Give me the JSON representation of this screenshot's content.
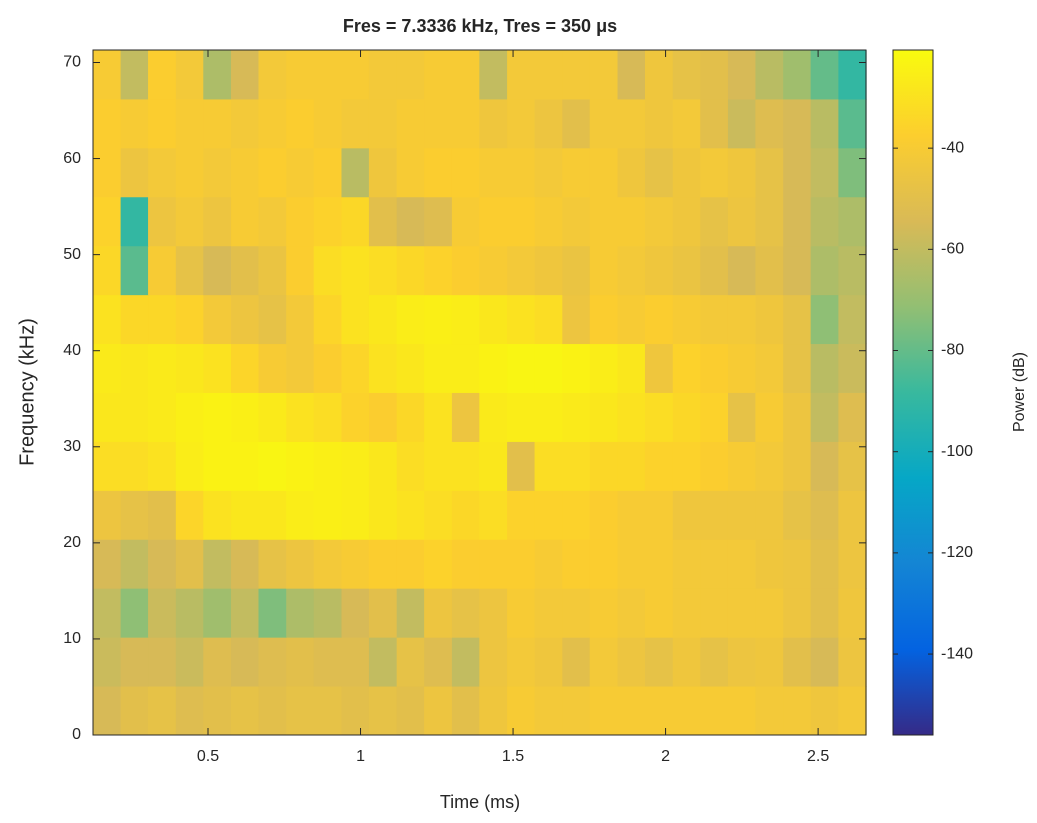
{
  "chart_data": {
    "type": "heatmap",
    "title": "Fres = 7.3336 kHz, Tres = 350 μs",
    "x_label": "Time (ms)",
    "y_label": "Frequency (kHz)",
    "colorbar_label": "Power (dB)",
    "colormap": "parula",
    "xlim": [
      0.123,
      2.657
    ],
    "ylim": [
      0,
      71.3
    ],
    "clim": [
      -156,
      -20.6
    ],
    "xticks": [
      0.5,
      1,
      1.5,
      2,
      2.5
    ],
    "yticks": [
      0,
      10,
      20,
      30,
      40,
      50,
      60,
      70
    ],
    "cticks": [
      -40,
      -60,
      -80,
      -100,
      -120,
      -140
    ],
    "x": [
      0.168,
      0.259,
      0.349,
      0.44,
      0.53,
      0.621,
      0.711,
      0.802,
      0.892,
      0.983,
      1.073,
      1.164,
      1.254,
      1.345,
      1.435,
      1.526,
      1.616,
      1.707,
      1.797,
      1.888,
      1.978,
      2.069,
      2.159,
      2.25,
      2.34,
      2.431,
      2.521,
      2.612
    ],
    "y": [
      2.55,
      7.64,
      12.73,
      17.83,
      22.92,
      28.01,
      33.1,
      38.2,
      43.29,
      48.38,
      53.47,
      58.57,
      63.66,
      68.75
    ],
    "z": [
      [
        -55,
        -50,
        -48,
        -52,
        -50,
        -48,
        -50,
        -48,
        -48,
        -50,
        -48,
        -50,
        -45,
        -50,
        -44,
        -40,
        -42,
        -42,
        -40,
        -40,
        -40,
        -40,
        -40,
        -40,
        -42,
        -42,
        -44,
        -42
      ],
      [
        -58,
        -55,
        -55,
        -58,
        -52,
        -55,
        -52,
        -50,
        -52,
        -52,
        -60,
        -48,
        -52,
        -60,
        -45,
        -42,
        -44,
        -50,
        -42,
        -45,
        -48,
        -44,
        -48,
        -45,
        -44,
        -50,
        -55,
        -45
      ],
      [
        -60,
        -72,
        -58,
        -62,
        -68,
        -60,
        -75,
        -65,
        -62,
        -55,
        -50,
        -60,
        -45,
        -48,
        -45,
        -40,
        -42,
        -42,
        -40,
        -42,
        -40,
        -42,
        -42,
        -42,
        -42,
        -45,
        -50,
        -44
      ],
      [
        -55,
        -60,
        -55,
        -50,
        -60,
        -55,
        -48,
        -45,
        -42,
        -40,
        -38,
        -38,
        -36,
        -38,
        -38,
        -38,
        -40,
        -38,
        -38,
        -40,
        -40,
        -42,
        -42,
        -42,
        -44,
        -45,
        -50,
        -45
      ],
      [
        -45,
        -48,
        -50,
        -35,
        -30,
        -28,
        -28,
        -26,
        -25,
        -26,
        -28,
        -30,
        -32,
        -34,
        -32,
        -36,
        -36,
        -36,
        -38,
        -40,
        -40,
        -44,
        -44,
        -44,
        -44,
        -48,
        -52,
        -45
      ],
      [
        -32,
        -32,
        -30,
        -26,
        -24,
        -24,
        -23,
        -24,
        -25,
        -26,
        -28,
        -32,
        -30,
        -30,
        -28,
        -50,
        -32,
        -32,
        -34,
        -34,
        -36,
        -36,
        -38,
        -40,
        -42,
        -45,
        -55,
        -48
      ],
      [
        -28,
        -28,
        -27,
        -25,
        -24,
        -25,
        -27,
        -30,
        -32,
        -36,
        -38,
        -34,
        -30,
        -45,
        -27,
        -26,
        -26,
        -27,
        -28,
        -30,
        -32,
        -34,
        -36,
        -48,
        -40,
        -45,
        -60,
        -52
      ],
      [
        -27,
        -28,
        -27,
        -28,
        -30,
        -35,
        -40,
        -42,
        -38,
        -35,
        -30,
        -28,
        -26,
        -26,
        -24,
        -23,
        -23,
        -24,
        -26,
        -28,
        -44,
        -36,
        -38,
        -40,
        -42,
        -48,
        -62,
        -58
      ],
      [
        -30,
        -34,
        -34,
        -36,
        -42,
        -45,
        -48,
        -42,
        -35,
        -30,
        -28,
        -26,
        -25,
        -26,
        -28,
        -30,
        -32,
        -45,
        -38,
        -40,
        -38,
        -40,
        -42,
        -42,
        -44,
        -48,
        -72,
        -60
      ],
      [
        -34,
        -82,
        -40,
        -48,
        -55,
        -50,
        -46,
        -38,
        -32,
        -30,
        -32,
        -34,
        -36,
        -38,
        -40,
        -42,
        -44,
        -46,
        -40,
        -42,
        -44,
        -46,
        -50,
        -55,
        -50,
        -55,
        -65,
        -62
      ],
      [
        -36,
        -90,
        -45,
        -42,
        -45,
        -40,
        -42,
        -38,
        -36,
        -34,
        -50,
        -55,
        -52,
        -40,
        -38,
        -38,
        -40,
        -42,
        -40,
        -40,
        -42,
        -44,
        -48,
        -45,
        -48,
        -55,
        -62,
        -65
      ],
      [
        -38,
        -45,
        -42,
        -40,
        -42,
        -40,
        -38,
        -40,
        -38,
        -62,
        -44,
        -40,
        -38,
        -38,
        -40,
        -40,
        -42,
        -40,
        -40,
        -44,
        -48,
        -44,
        -42,
        -44,
        -48,
        -55,
        -60,
        -75
      ],
      [
        -38,
        -40,
        -38,
        -40,
        -40,
        -42,
        -40,
        -38,
        -40,
        -42,
        -42,
        -40,
        -40,
        -40,
        -44,
        -42,
        -45,
        -50,
        -42,
        -42,
        -44,
        -42,
        -50,
        -58,
        -52,
        -55,
        -62,
        -82
      ],
      [
        -40,
        -60,
        -38,
        -42,
        -65,
        -55,
        -42,
        -40,
        -40,
        -40,
        -42,
        -42,
        -40,
        -40,
        -60,
        -42,
        -42,
        -42,
        -42,
        -55,
        -44,
        -48,
        -50,
        -55,
        -62,
        -68,
        -80,
        -90
      ]
    ]
  }
}
